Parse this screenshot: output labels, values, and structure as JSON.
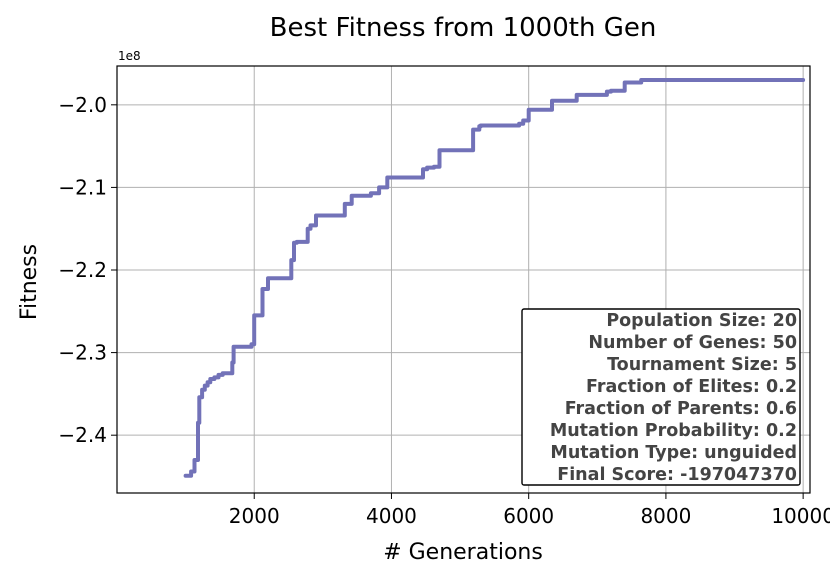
{
  "chart_data": {
    "type": "line",
    "title": "Best Fitness from 1000th Gen",
    "xlabel": "# Generations",
    "ylabel": "Fitness",
    "y_offset_label": "1e8",
    "xlim": [
      0,
      10100
    ],
    "ylim": [
      -2.47,
      -1.953
    ],
    "xticks": [
      2000,
      4000,
      6000,
      8000,
      10000
    ],
    "xtick_labels": [
      "2000",
      "4000",
      "6000",
      "8000",
      "10000"
    ],
    "yticks": [
      -2.4,
      -2.3,
      -2.2,
      -2.1,
      -2.0
    ],
    "ytick_labels": [
      "−2.4",
      "−2.3",
      "−2.2",
      "−2.1",
      "−2.0"
    ],
    "grid": true,
    "line_color": "#7272b8",
    "series": [
      {
        "x": [
          1000,
          1080,
          1080,
          1130,
          1130,
          1180,
          1180,
          1200,
          1200,
          1240,
          1240,
          1280,
          1280,
          1320,
          1320,
          1360,
          1360,
          1420,
          1420,
          1480,
          1480,
          1540,
          1540,
          1680,
          1680,
          1700,
          1700,
          1960,
          1960,
          2000,
          2000,
          2120,
          2120,
          2200,
          2200,
          2540,
          2540,
          2580,
          2580,
          2620,
          2620,
          2780,
          2780,
          2820,
          2820,
          2900,
          2900,
          3320,
          3320,
          3420,
          3420,
          3700,
          3700,
          3820,
          3820,
          3940,
          3940,
          4460,
          4460,
          4520,
          4520,
          4620,
          4620,
          4700,
          4700,
          5190,
          5190,
          5280,
          5280,
          5300,
          5300,
          5860,
          5860,
          5920,
          5920,
          6000,
          6000,
          6340,
          6340,
          6700,
          6700,
          7140,
          7140,
          7200,
          7200,
          7400,
          7400,
          7640,
          7640,
          10000
        ],
        "y": [
          -2.449,
          -2.449,
          -2.444,
          -2.444,
          -2.43,
          -2.43,
          -2.385,
          -2.385,
          -2.354,
          -2.354,
          -2.345,
          -2.345,
          -2.34,
          -2.34,
          -2.336,
          -2.336,
          -2.332,
          -2.332,
          -2.33,
          -2.33,
          -2.327,
          -2.327,
          -2.325,
          -2.325,
          -2.312,
          -2.312,
          -2.293,
          -2.293,
          -2.29,
          -2.29,
          -2.255,
          -2.255,
          -2.223,
          -2.223,
          -2.21,
          -2.21,
          -2.188,
          -2.188,
          -2.167,
          -2.167,
          -2.166,
          -2.166,
          -2.15,
          -2.15,
          -2.146,
          -2.146,
          -2.134,
          -2.134,
          -2.12,
          -2.12,
          -2.11,
          -2.11,
          -2.107,
          -2.107,
          -2.1,
          -2.1,
          -2.088,
          -2.088,
          -2.078,
          -2.078,
          -2.076,
          -2.076,
          -2.075,
          -2.075,
          -2.055,
          -2.055,
          -2.03,
          -2.03,
          -2.026,
          -2.026,
          -2.025,
          -2.025,
          -2.023,
          -2.023,
          -2.019,
          -2.019,
          -2.006,
          -2.006,
          -1.995,
          -1.995,
          -1.988,
          -1.988,
          -1.984,
          -1.984,
          -1.983,
          -1.983,
          -1.973,
          -1.973,
          -1.97,
          -1.97
        ]
      }
    ],
    "annotation_lines": [
      "Population Size: 20",
      "Number of Genes: 50",
      "Tournament Size: 5",
      "Fraction of Elites: 0.2",
      "Fraction of Parents: 0.6",
      "Mutation Probability: 0.2",
      "Mutation Type: unguided",
      "Final Score: -197047370"
    ],
    "annotation_placement": "bottom-right"
  }
}
